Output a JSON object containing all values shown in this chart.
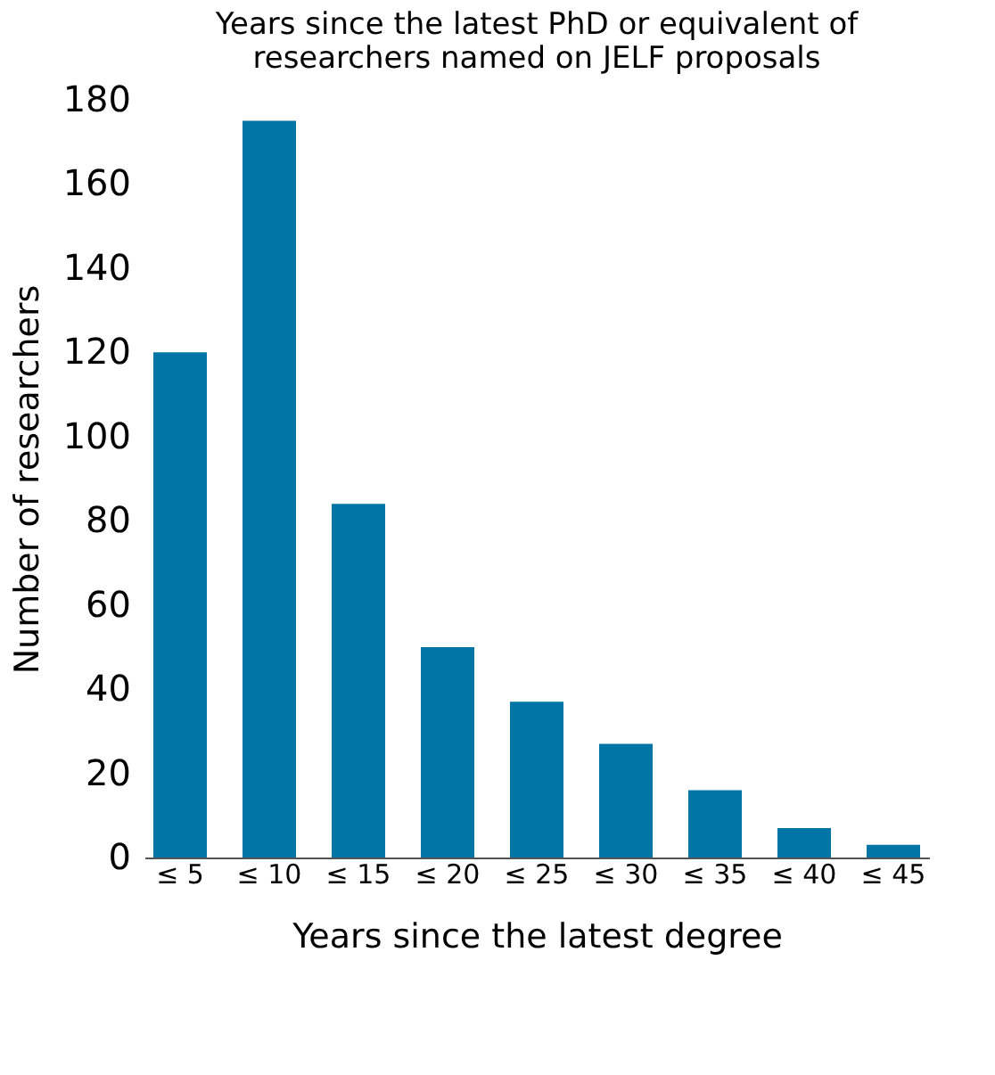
{
  "chart_data": {
    "type": "bar",
    "title": [
      "Years since the latest PhD or equivalent of",
      "researchers named on JELF proposals"
    ],
    "xlabel": "Years since the latest degree",
    "ylabel": "Number of researchers",
    "categories": [
      "≤ 5",
      "≤ 10",
      "≤ 15",
      "≤ 20",
      "≤ 25",
      "≤ 30",
      "≤ 35",
      "≤ 40",
      "≤ 45"
    ],
    "values": [
      120,
      175,
      84,
      50,
      37,
      27,
      16,
      7,
      3
    ],
    "color": "#0075a6",
    "ylim": [
      0,
      180
    ],
    "yticks": [
      0,
      20,
      40,
      60,
      80,
      100,
      120,
      140,
      160,
      180
    ],
    "grid": false
  }
}
